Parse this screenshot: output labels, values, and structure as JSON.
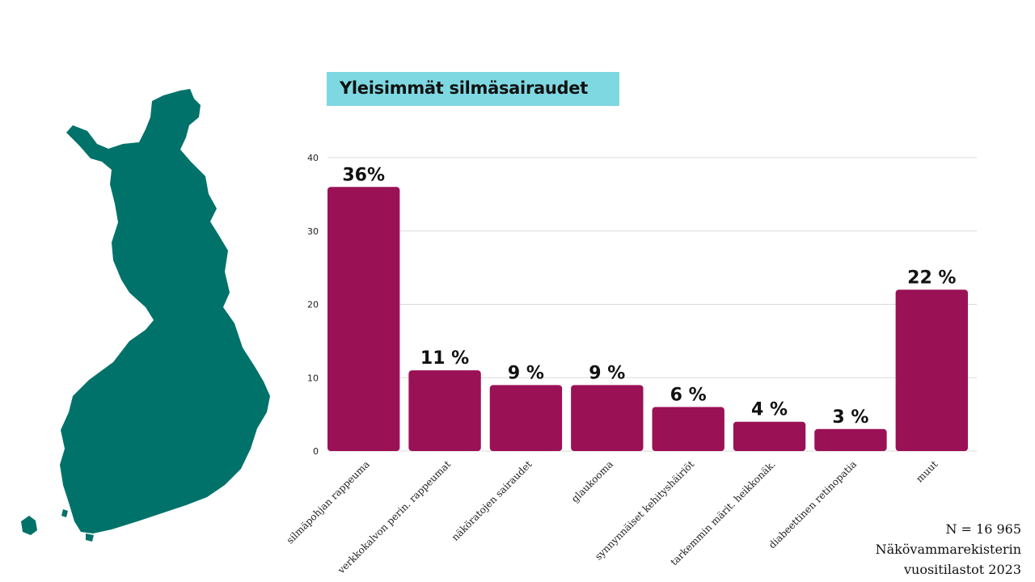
{
  "title": "Yleisimmät silmäsairaudet",
  "colors": {
    "bar": "#9b1156",
    "title_bg": "#7ed8e2",
    "map": "#00726a"
  },
  "map_icon": "finland-map-icon",
  "note": {
    "line1": "N = 16 965",
    "line2": "Näkövammarekisterin",
    "line3": "vuositilastot 2023"
  },
  "chart_data": {
    "type": "bar",
    "categories": [
      "silmäpohjan rappeuma",
      "verkkokalvon perin. rappeumat",
      "näköratojen sairaudet",
      "glaukooma",
      "synnynnäiset kehityshäiriöt",
      "tarkemmin märit. heikkonäk.",
      "diabeettinen retinopatia",
      "muut"
    ],
    "values": [
      36,
      11,
      9,
      9,
      6,
      4,
      3,
      22
    ],
    "data_labels": [
      "36%",
      "11 %",
      "9 %",
      "9 %",
      "6 %",
      "4 %",
      "3 %",
      "22 %"
    ],
    "yticks": [
      0,
      10,
      20,
      30,
      40
    ],
    "ylim": [
      0,
      40
    ],
    "grid": true
  }
}
